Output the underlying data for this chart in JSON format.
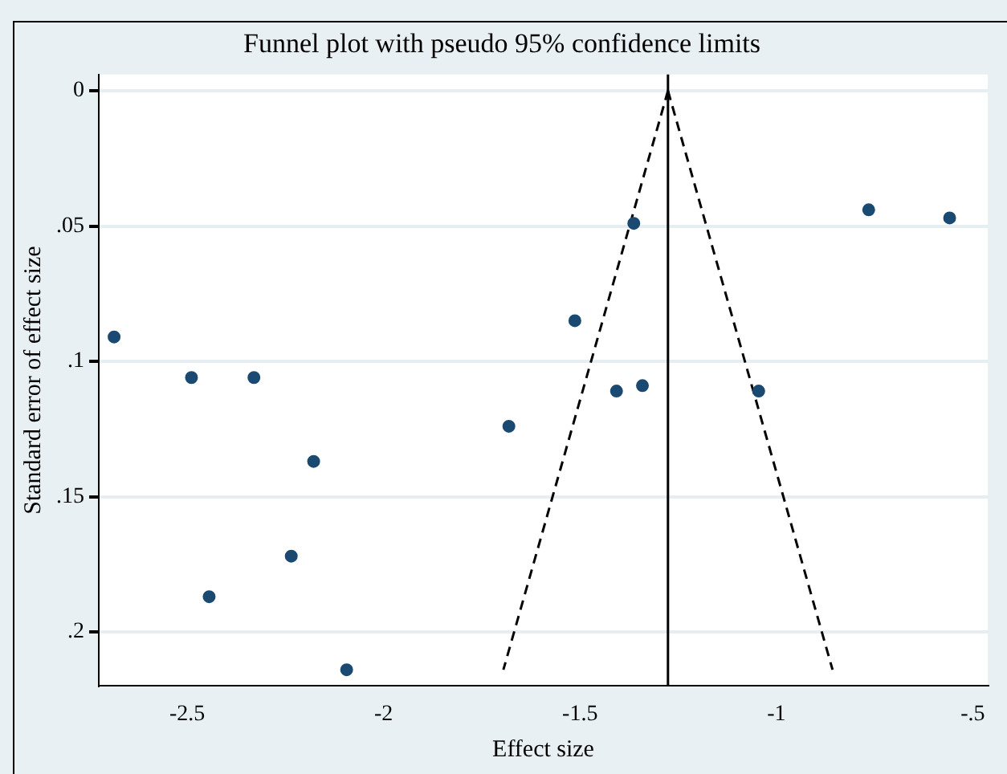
{
  "chart_data": {
    "type": "scatter",
    "title": "Funnel plot with pseudo 95% confidence limits",
    "xlabel": "Effect size",
    "ylabel": "Standard error of effect size",
    "xlim": [
      -2.725,
      -0.462
    ],
    "ylim": [
      0.22,
      -0.006
    ],
    "xticks": [
      -2.5,
      -2,
      -1.5,
      -1,
      {
        "value": -0.5,
        "label": "-.5"
      }
    ],
    "yticks": [
      0,
      {
        "value": 0.05,
        "label": ".05"
      },
      {
        "value": 0.1,
        "label": ".1"
      },
      {
        "value": 0.15,
        "label": ".15"
      },
      {
        "value": 0.2,
        "label": ".2"
      }
    ],
    "grid": "y",
    "legend": false,
    "ref_lines": [
      {
        "axis": "x",
        "value": -1.276,
        "color": "#000000",
        "line_style": "solid"
      }
    ],
    "series": [
      {
        "marker": "circle",
        "color": "#1a4a72",
        "x": [
          -2.686,
          -2.489,
          -2.33,
          -2.178,
          -2.235,
          -2.444,
          -2.094,
          -1.681,
          -1.513,
          -1.363,
          -1.407,
          -1.341,
          -1.045,
          -0.765,
          -0.559
        ],
        "values": [
          0.091,
          0.106,
          0.106,
          0.137,
          0.172,
          0.187,
          0.214,
          0.124,
          0.085,
          0.049,
          0.111,
          0.109,
          0.111,
          0.044,
          0.047
        ]
      },
      {
        "type": "line",
        "marker": "none",
        "color": "#000000",
        "line_style": "dashed",
        "x": [
          -1.276,
          -1.695
        ],
        "values": [
          0,
          0.214
        ]
      },
      {
        "type": "line",
        "marker": "none",
        "color": "#000000",
        "line_style": "dashed",
        "x": [
          -1.276,
          -0.857
        ],
        "values": [
          0,
          0.214
        ]
      }
    ]
  }
}
